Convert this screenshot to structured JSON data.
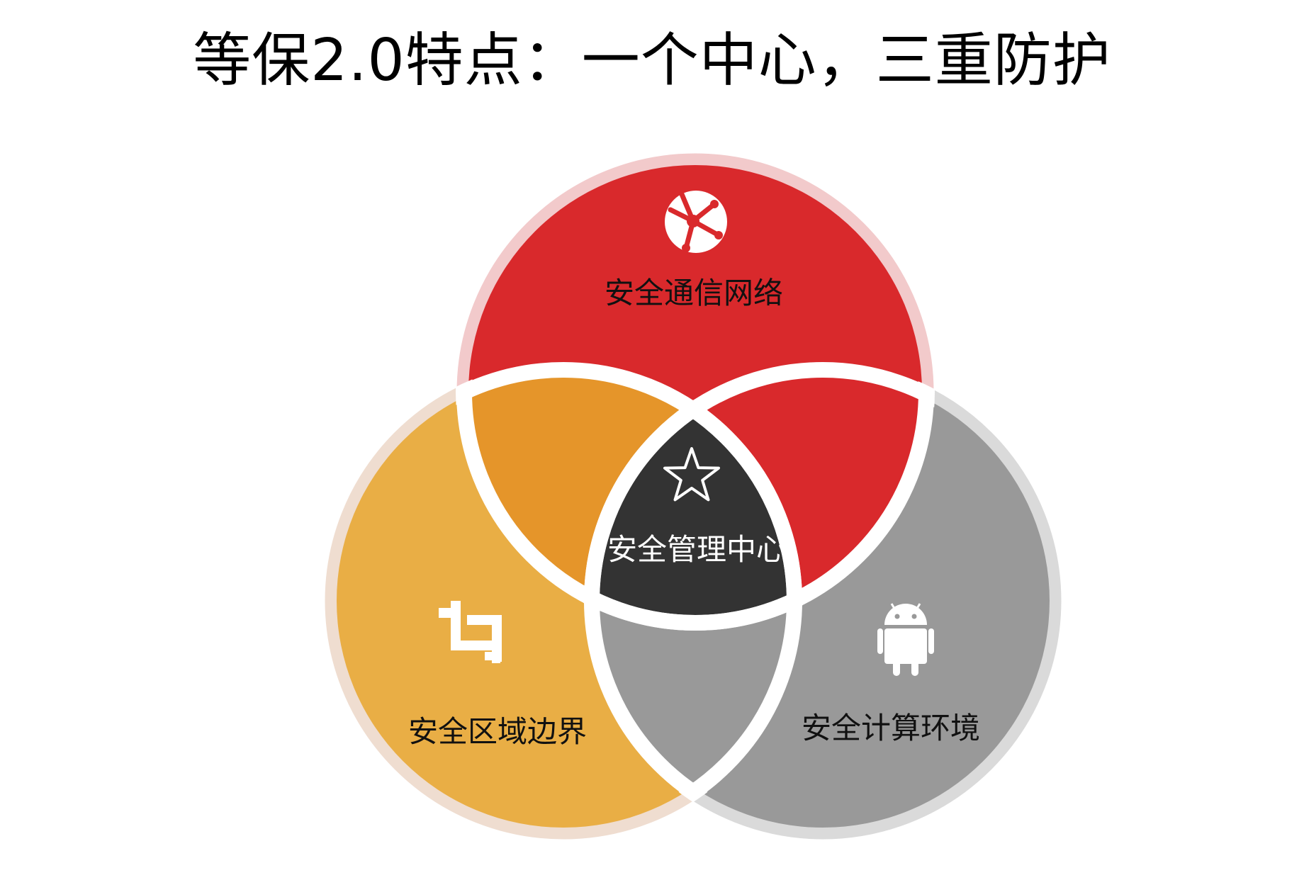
{
  "title": "等保2.0特点：一个中心，三重防护",
  "regions": {
    "top": {
      "label": "安全通信网络",
      "icon": "network-globe-icon",
      "color": "#D9292C",
      "ring": "#F2CACB"
    },
    "left": {
      "label": "安全区域边界",
      "icon": "crop-icon",
      "color": "#E9AE45",
      "ring": "#EFDDD0"
    },
    "right": {
      "label": "安全计算环境",
      "icon": "android-icon",
      "color": "#999999",
      "ring": "#DADADA"
    },
    "center": {
      "label": "安全管理中心",
      "icon": "star-icon",
      "color": "#333333"
    },
    "top_left_overlap": {
      "color": "#E5952A"
    },
    "top_right_overlap": {
      "color": "#D9292C"
    },
    "left_right_overlap": {
      "color": "#999999"
    }
  }
}
